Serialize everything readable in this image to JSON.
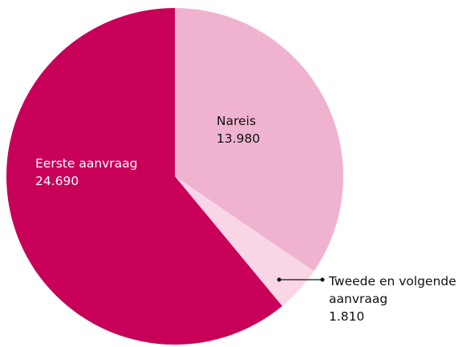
{
  "chart_data": {
    "type": "pie",
    "categories": [
      "Nareis",
      "Tweede en volgende aanvraag",
      "Eerste aanvraag"
    ],
    "values": [
      13980,
      1810,
      24690
    ],
    "value_labels": [
      "13.980",
      "1.810",
      "24.690"
    ],
    "colors": [
      "#efb3d0",
      "#f8d6e6",
      "#c8005a"
    ]
  }
}
